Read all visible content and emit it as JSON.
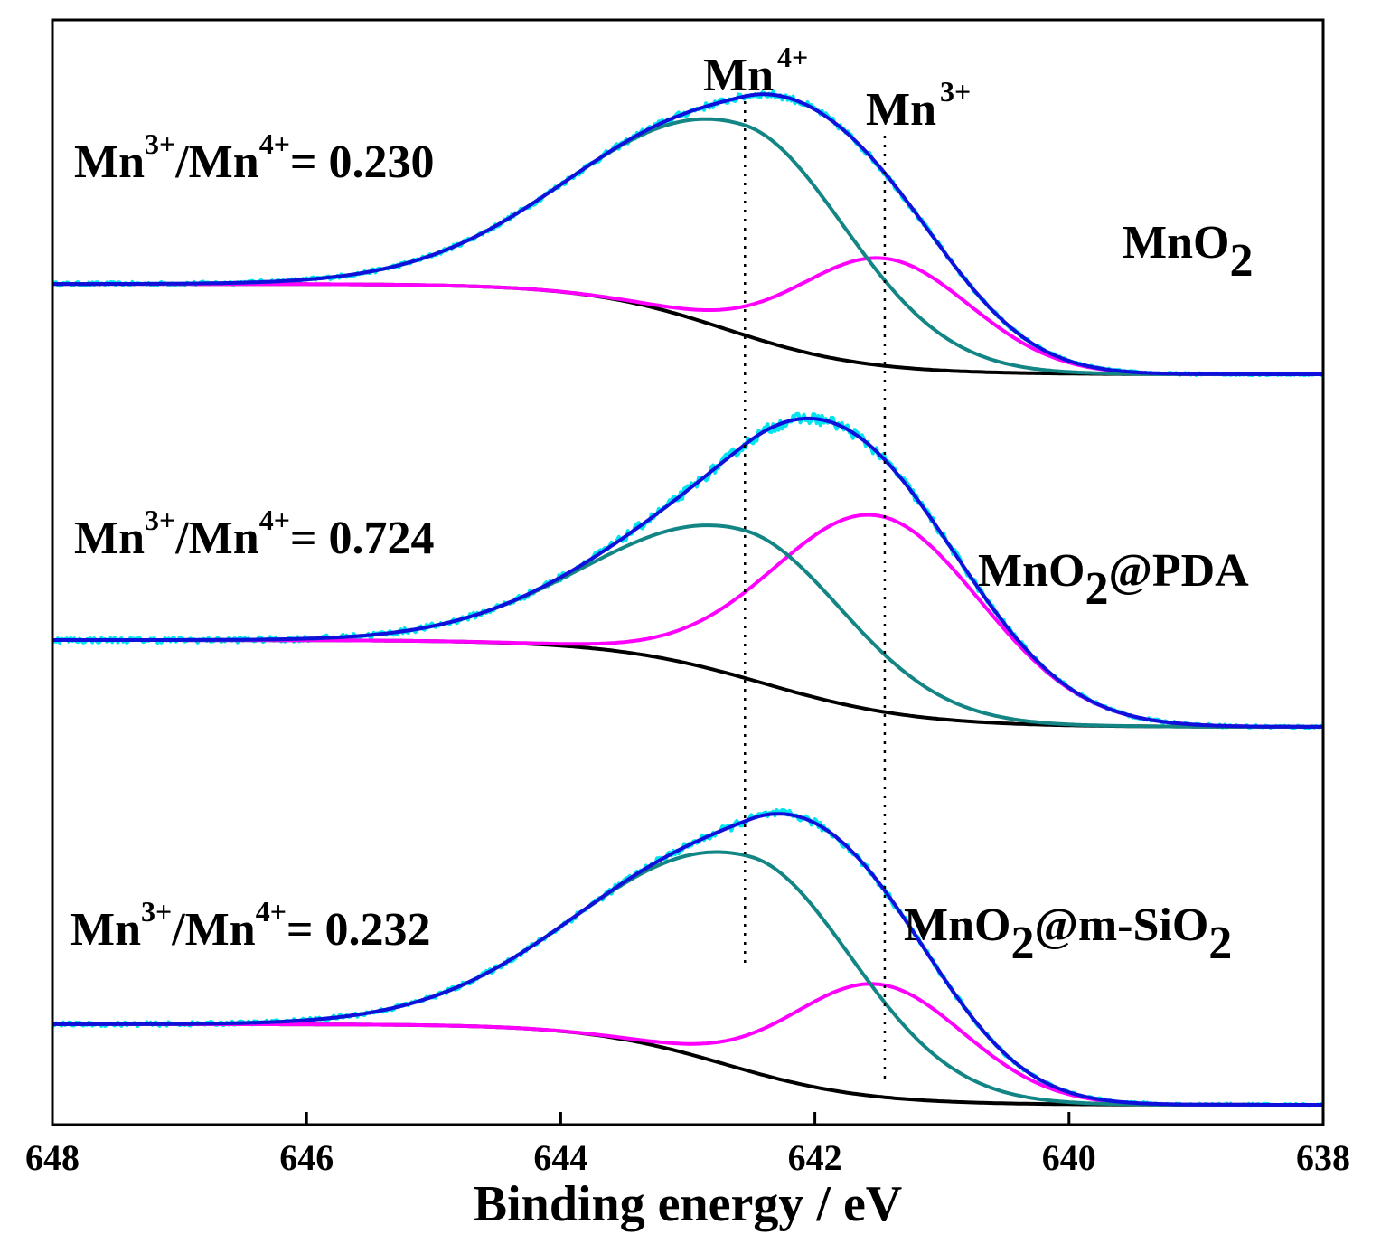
{
  "chart_data": {
    "type": "line",
    "title": "",
    "xlabel": "Binding energy / eV",
    "ylabel": "",
    "xlim": [
      648,
      638
    ],
    "x_reversed": true,
    "xticks": [
      648,
      646,
      644,
      642,
      640,
      638
    ],
    "xtick_labels": [
      "648",
      "646",
      "644",
      "642",
      "640",
      "638"
    ],
    "grid": false,
    "legend": "none",
    "colors": {
      "raw": "#00E5EE",
      "fit": "#1010DD",
      "mn4": "#138585",
      "mn3": "#FF00FF",
      "background": "#000000",
      "refline": "#000000"
    },
    "reference_lines": [
      {
        "name": "Mn4+ reference",
        "x": 642.55,
        "label": {
          "base": "Mn",
          "sup": "4+"
        }
      },
      {
        "name": "Mn3+ reference",
        "x": 641.45,
        "label": {
          "base": "Mn",
          "sup": "3+"
        }
      }
    ],
    "panels": [
      {
        "sample": {
          "base": "MnO",
          "sub": "2",
          "rest": ""
        },
        "ratio": {
          "a": "Mn",
          "a_sup": "3+",
          "slash": "/Mn",
          "b_sup": "4+",
          "value": "= 0.230"
        },
        "offset": 0,
        "baseline": {
          "left": 0.74,
          "right": 0.0,
          "center": 642.7,
          "width": 0.55
        },
        "mn4_peak": {
          "center": 642.55,
          "amplitude": 1.72,
          "sigma_left": 1.25,
          "sigma_right": 0.82
        },
        "mn3_peak": {
          "center": 641.45,
          "amplitude": 0.88,
          "sigma": 0.68
        },
        "noise": 0.045
      },
      {
        "sample": {
          "base": "MnO",
          "sub": "2",
          "rest": "@PDA"
        },
        "ratio": {
          "a": "Mn",
          "a_sup": "3+",
          "slash": "/Mn",
          "b_sup": "4+",
          "value": "= 0.724"
        },
        "offset": 0,
        "baseline": {
          "left": 0.8,
          "right": 0.0,
          "center": 642.4,
          "width": 0.6
        },
        "mn4_peak": {
          "center": 642.55,
          "amplitude": 1.36,
          "sigma_left": 1.15,
          "sigma_right": 0.8
        },
        "mn3_peak": {
          "center": 641.5,
          "amplitude": 1.8,
          "sigma": 0.82
        },
        "noise": 0.07
      },
      {
        "sample": {
          "base": "MnO",
          "sub": "2",
          "rest": "@m-SiO",
          "sub2": "2"
        },
        "ratio": {
          "a": "Mn",
          "a_sup": "3+",
          "slash": "/Mn",
          "b_sup": "4+",
          "value": "= 0.232"
        },
        "offset": 0,
        "baseline": {
          "left": 0.66,
          "right": 0.0,
          "center": 642.7,
          "width": 0.55
        },
        "mn4_peak": {
          "center": 642.5,
          "amplitude": 1.76,
          "sigma_left": 1.25,
          "sigma_right": 0.82
        },
        "mn3_peak": {
          "center": 641.5,
          "amplitude": 0.92,
          "sigma": 0.68
        },
        "noise": 0.05
      }
    ]
  }
}
